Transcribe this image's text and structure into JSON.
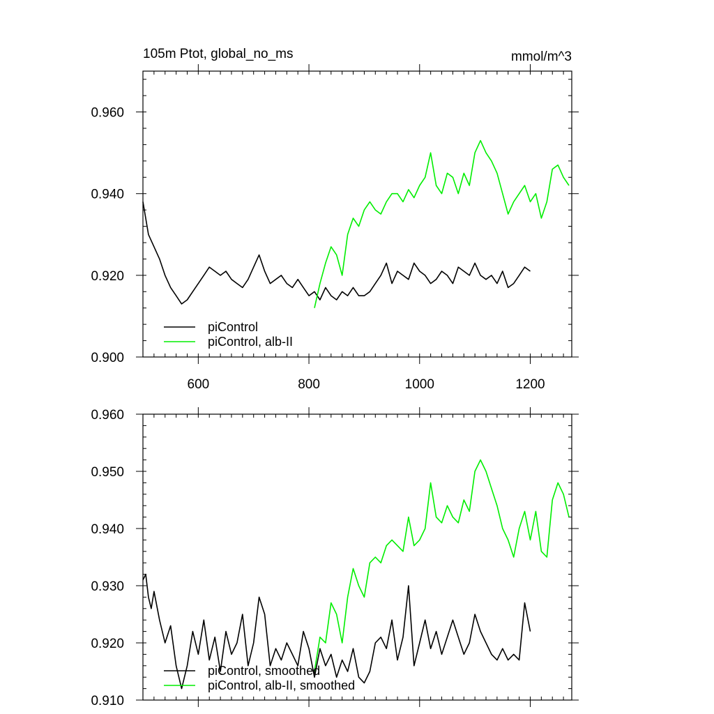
{
  "chart_data": [
    {
      "type": "line",
      "title_left": "105m Ptot, global_no_ms",
      "title_right": "mmol/m^3",
      "xlim": [
        500,
        1275
      ],
      "ylim": [
        0.9,
        0.97
      ],
      "x_ticks": [
        600,
        800,
        1000,
        1200
      ],
      "x_tick_labels": [
        "600",
        "800",
        "1000",
        "1200"
      ],
      "y_ticks": [
        0.9,
        0.92,
        0.94,
        0.96
      ],
      "y_tick_labels": [
        "0.900",
        "0.920",
        "0.940",
        "0.960"
      ],
      "x_minor_step": 20,
      "y_minor_step": 0.004,
      "legend_position": "bottom-left",
      "series": [
        {
          "name": "piControl",
          "color": "#000000",
          "x": [
            500,
            510,
            520,
            530,
            540,
            550,
            560,
            570,
            580,
            590,
            600,
            610,
            620,
            630,
            640,
            650,
            660,
            670,
            680,
            690,
            700,
            710,
            720,
            730,
            740,
            750,
            760,
            770,
            780,
            790,
            800,
            810,
            820,
            830,
            840,
            850,
            860,
            870,
            880,
            890,
            900,
            910,
            920,
            930,
            940,
            950,
            960,
            970,
            980,
            990,
            1000,
            1010,
            1020,
            1030,
            1040,
            1050,
            1060,
            1070,
            1080,
            1090,
            1100,
            1110,
            1120,
            1130,
            1140,
            1150,
            1160,
            1170,
            1180,
            1190,
            1200
          ],
          "values": [
            0.938,
            0.93,
            0.927,
            0.924,
            0.92,
            0.917,
            0.915,
            0.913,
            0.914,
            0.916,
            0.918,
            0.92,
            0.922,
            0.921,
            0.92,
            0.921,
            0.919,
            0.918,
            0.917,
            0.919,
            0.922,
            0.925,
            0.921,
            0.918,
            0.919,
            0.92,
            0.918,
            0.917,
            0.919,
            0.917,
            0.915,
            0.916,
            0.914,
            0.917,
            0.915,
            0.914,
            0.916,
            0.915,
            0.917,
            0.915,
            0.915,
            0.916,
            0.918,
            0.92,
            0.923,
            0.918,
            0.921,
            0.92,
            0.919,
            0.923,
            0.921,
            0.92,
            0.918,
            0.919,
            0.921,
            0.92,
            0.918,
            0.922,
            0.921,
            0.92,
            0.923,
            0.92,
            0.919,
            0.92,
            0.918,
            0.921,
            0.917,
            0.918,
            0.92,
            0.922,
            0.921
          ]
        },
        {
          "name": "piControl, alb-II",
          "color": "#00ee00",
          "x": [
            810,
            820,
            830,
            840,
            850,
            860,
            870,
            880,
            890,
            900,
            910,
            920,
            930,
            940,
            950,
            960,
            970,
            980,
            990,
            1000,
            1010,
            1020,
            1030,
            1040,
            1050,
            1060,
            1070,
            1080,
            1090,
            1100,
            1110,
            1120,
            1130,
            1140,
            1150,
            1160,
            1170,
            1180,
            1190,
            1200,
            1210,
            1220,
            1230,
            1240,
            1250,
            1260,
            1270
          ],
          "values": [
            0.912,
            0.918,
            0.923,
            0.927,
            0.925,
            0.92,
            0.93,
            0.934,
            0.932,
            0.936,
            0.938,
            0.936,
            0.935,
            0.938,
            0.94,
            0.94,
            0.938,
            0.941,
            0.939,
            0.942,
            0.944,
            0.95,
            0.942,
            0.94,
            0.945,
            0.944,
            0.94,
            0.945,
            0.942,
            0.95,
            0.953,
            0.95,
            0.948,
            0.945,
            0.94,
            0.935,
            0.938,
            0.94,
            0.942,
            0.938,
            0.94,
            0.934,
            0.938,
            0.946,
            0.947,
            0.944,
            0.942
          ]
        }
      ]
    },
    {
      "type": "line",
      "xlim": [
        500,
        1275
      ],
      "ylim": [
        0.91,
        0.96
      ],
      "x_ticks": [
        600,
        800,
        1000,
        1200
      ],
      "y_ticks": [
        0.91,
        0.92,
        0.93,
        0.94,
        0.95,
        0.96
      ],
      "y_tick_labels": [
        "0.910",
        "0.920",
        "0.930",
        "0.940",
        "0.950",
        "0.960"
      ],
      "x_minor_step": 20,
      "y_minor_step": 0.002,
      "legend_position": "bottom-left",
      "series": [
        {
          "name": "piControl, smoothed",
          "color": "#000000",
          "x": [
            500,
            505,
            510,
            515,
            520,
            530,
            540,
            550,
            560,
            570,
            580,
            590,
            600,
            610,
            620,
            630,
            640,
            650,
            660,
            670,
            680,
            690,
            700,
            710,
            720,
            730,
            740,
            750,
            760,
            770,
            780,
            790,
            800,
            810,
            820,
            830,
            840,
            850,
            860,
            870,
            880,
            890,
            900,
            910,
            920,
            930,
            940,
            950,
            960,
            970,
            980,
            990,
            1000,
            1010,
            1020,
            1030,
            1040,
            1050,
            1060,
            1070,
            1080,
            1090,
            1100,
            1110,
            1120,
            1130,
            1140,
            1150,
            1160,
            1170,
            1180,
            1190,
            1200
          ],
          "values": [
            0.931,
            0.932,
            0.928,
            0.926,
            0.929,
            0.924,
            0.92,
            0.923,
            0.916,
            0.912,
            0.916,
            0.922,
            0.918,
            0.924,
            0.917,
            0.921,
            0.915,
            0.922,
            0.918,
            0.92,
            0.925,
            0.916,
            0.92,
            0.928,
            0.925,
            0.916,
            0.919,
            0.917,
            0.92,
            0.918,
            0.916,
            0.922,
            0.919,
            0.914,
            0.919,
            0.916,
            0.918,
            0.914,
            0.917,
            0.915,
            0.919,
            0.914,
            0.913,
            0.915,
            0.92,
            0.921,
            0.919,
            0.924,
            0.917,
            0.921,
            0.93,
            0.916,
            0.92,
            0.924,
            0.919,
            0.922,
            0.918,
            0.921,
            0.924,
            0.921,
            0.918,
            0.92,
            0.925,
            0.922,
            0.92,
            0.918,
            0.917,
            0.919,
            0.917,
            0.918,
            0.917,
            0.927,
            0.922
          ]
        },
        {
          "name": "piControl, alb-II, smoothed",
          "color": "#00ee00",
          "x": [
            810,
            820,
            830,
            840,
            850,
            860,
            870,
            880,
            890,
            900,
            910,
            920,
            930,
            940,
            950,
            960,
            970,
            980,
            990,
            1000,
            1010,
            1020,
            1030,
            1040,
            1050,
            1060,
            1070,
            1080,
            1090,
            1100,
            1110,
            1120,
            1130,
            1140,
            1150,
            1160,
            1170,
            1180,
            1190,
            1200,
            1210,
            1220,
            1230,
            1240,
            1250,
            1260,
            1270
          ],
          "values": [
            0.915,
            0.921,
            0.92,
            0.927,
            0.925,
            0.92,
            0.928,
            0.933,
            0.93,
            0.928,
            0.934,
            0.935,
            0.934,
            0.937,
            0.938,
            0.937,
            0.936,
            0.942,
            0.937,
            0.938,
            0.94,
            0.948,
            0.942,
            0.941,
            0.944,
            0.942,
            0.941,
            0.945,
            0.943,
            0.95,
            0.952,
            0.95,
            0.947,
            0.944,
            0.94,
            0.938,
            0.935,
            0.94,
            0.943,
            0.938,
            0.943,
            0.936,
            0.935,
            0.945,
            0.948,
            0.946,
            0.942
          ]
        }
      ]
    }
  ]
}
